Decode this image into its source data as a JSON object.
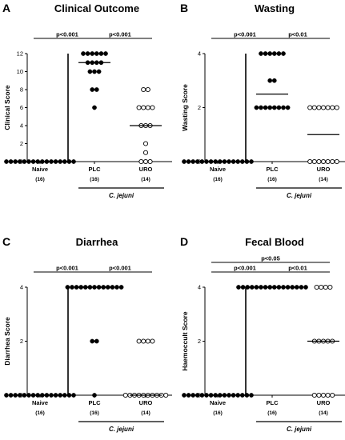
{
  "chart_data": [
    {
      "type": "scatter",
      "letter": "A",
      "title": "Clinical Outcome",
      "ylabel": "Clinical  Score",
      "ylim": [
        0,
        12
      ],
      "yticks": [
        0,
        2,
        4,
        6,
        8,
        10,
        12
      ],
      "categories": [
        "Naive",
        "PLC",
        "URO"
      ],
      "counts": [
        "(16)",
        "(16)",
        "(14)"
      ],
      "group_label": "C. jejuni",
      "series": [
        {
          "category": "Naive",
          "fill": "filled",
          "median": 0,
          "values": [
            0,
            0,
            0,
            0,
            0,
            0,
            0,
            0,
            0,
            0,
            0,
            0,
            0,
            0,
            0,
            0
          ]
        },
        {
          "category": "PLC",
          "fill": "filled",
          "median": 11,
          "values": [
            12,
            12,
            12,
            12,
            12,
            12,
            11,
            11,
            11,
            11,
            10,
            10,
            10,
            8,
            8,
            6
          ]
        },
        {
          "category": "URO",
          "fill": "open",
          "median": 4,
          "values": [
            8,
            8,
            6,
            6,
            6,
            6,
            4,
            4,
            4,
            2,
            1,
            0,
            0,
            0
          ]
        }
      ],
      "comparisons": [
        {
          "from": "Naive",
          "to": "PLC",
          "label": "p<0.001",
          "level": 1
        },
        {
          "from": "PLC",
          "to": "URO",
          "label": "p<0.001",
          "level": 1
        }
      ]
    },
    {
      "type": "scatter",
      "letter": "B",
      "title": "Wasting",
      "ylabel": "Wasting Score",
      "ylim": [
        0,
        4
      ],
      "yticks": [
        0,
        2,
        4
      ],
      "categories": [
        "Naive",
        "PLC",
        "URO"
      ],
      "counts": [
        "(16)",
        "(16)",
        "(14)"
      ],
      "group_label": "C. jejuni",
      "series": [
        {
          "category": "Naive",
          "fill": "filled",
          "median": 0,
          "values": [
            0,
            0,
            0,
            0,
            0,
            0,
            0,
            0,
            0,
            0,
            0,
            0,
            0,
            0,
            0,
            0
          ]
        },
        {
          "category": "PLC",
          "fill": "filled",
          "median": 2.5,
          "values": [
            4,
            4,
            4,
            4,
            4,
            4,
            3,
            3,
            2,
            2,
            2,
            2,
            2,
            2,
            2,
            2
          ]
        },
        {
          "category": "URO",
          "fill": "open",
          "median": 1,
          "values": [
            2,
            2,
            2,
            2,
            2,
            2,
            2,
            0,
            0,
            0,
            0,
            0,
            0,
            0
          ]
        }
      ],
      "comparisons": [
        {
          "from": "Naive",
          "to": "PLC",
          "label": "p<0.001",
          "level": 1
        },
        {
          "from": "PLC",
          "to": "URO",
          "label": "p<0.01",
          "level": 1
        }
      ]
    },
    {
      "type": "scatter",
      "letter": "C",
      "title": "Diarrhea",
      "ylabel": "Diarrhea Score",
      "ylim": [
        0,
        4
      ],
      "yticks": [
        0,
        2,
        4
      ],
      "categories": [
        "Naive",
        "PLC",
        "URO"
      ],
      "counts": [
        "(16)",
        "(16)",
        "(14)"
      ],
      "group_label": "C. jejuni",
      "series": [
        {
          "category": "Naive",
          "fill": "filled",
          "median": 0,
          "values": [
            0,
            0,
            0,
            0,
            0,
            0,
            0,
            0,
            0,
            0,
            0,
            0,
            0,
            0,
            0,
            0
          ]
        },
        {
          "category": "PLC",
          "fill": "filled",
          "median": 4,
          "values": [
            4,
            4,
            4,
            4,
            4,
            4,
            4,
            4,
            4,
            4,
            4,
            4,
            4,
            2,
            2,
            0
          ]
        },
        {
          "category": "URO",
          "fill": "open",
          "median": 0,
          "values": [
            2,
            2,
            2,
            2,
            0,
            0,
            0,
            0,
            0,
            0,
            0,
            0,
            0,
            0
          ]
        }
      ],
      "comparisons": [
        {
          "from": "Naive",
          "to": "PLC",
          "label": "p<0.001",
          "level": 1
        },
        {
          "from": "PLC",
          "to": "URO",
          "label": "p<0.001",
          "level": 1
        }
      ]
    },
    {
      "type": "scatter",
      "letter": "D",
      "title": "Fecal Blood",
      "ylabel": "Haemoccult Score",
      "ylim": [
        0,
        4
      ],
      "yticks": [
        0,
        2,
        4
      ],
      "categories": [
        "Naive",
        "PLC",
        "URO"
      ],
      "counts": [
        "(16)",
        "(16)",
        "(14)"
      ],
      "group_label": "C. jejuni",
      "series": [
        {
          "category": "Naive",
          "fill": "filled",
          "median": 0,
          "values": [
            0,
            0,
            0,
            0,
            0,
            0,
            0,
            0,
            0,
            0,
            0,
            0,
            0,
            0,
            0,
            0
          ]
        },
        {
          "category": "PLC",
          "fill": "filled",
          "median": 4,
          "values": [
            4,
            4,
            4,
            4,
            4,
            4,
            4,
            4,
            4,
            4,
            4,
            4,
            4,
            4,
            4,
            4
          ]
        },
        {
          "category": "URO",
          "fill": "open",
          "median": 2,
          "values": [
            4,
            4,
            4,
            4,
            2,
            2,
            2,
            2,
            2,
            0,
            0,
            0,
            0,
            0
          ]
        }
      ],
      "comparisons": [
        {
          "from": "Naive",
          "to": "URO",
          "label": "p<0.05",
          "level": 2
        },
        {
          "from": "Naive",
          "to": "PLC",
          "label": "p<0.001",
          "level": 1
        },
        {
          "from": "PLC",
          "to": "URO",
          "label": "p<0.01",
          "level": 1
        }
      ]
    }
  ]
}
